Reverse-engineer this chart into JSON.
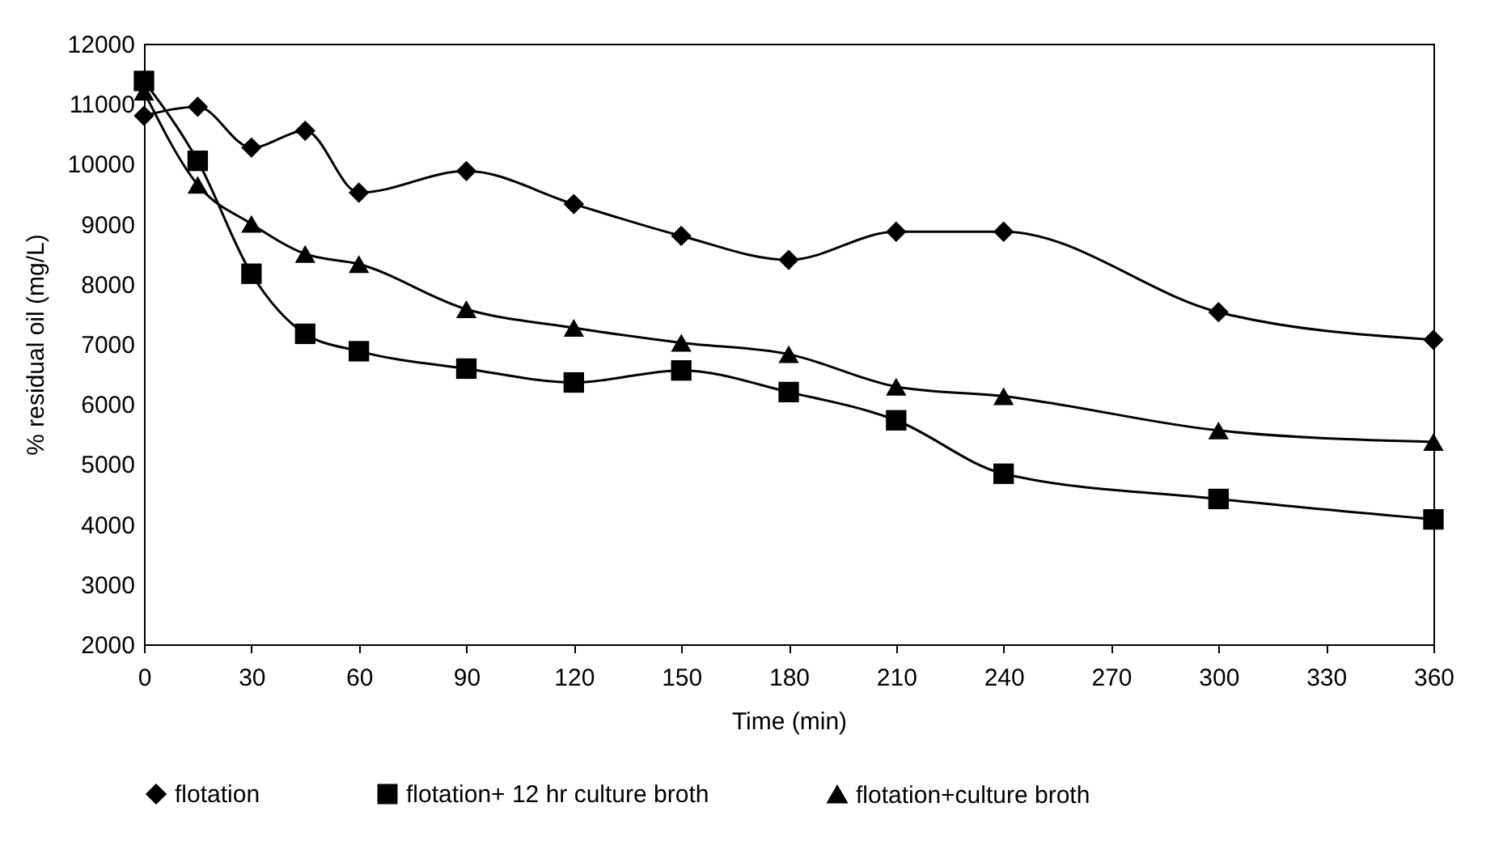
{
  "chart_data": {
    "type": "line",
    "xlabel": "Time (min)",
    "ylabel": "% residual oil (mg/L)",
    "x": [
      0,
      15,
      30,
      45,
      60,
      90,
      120,
      150,
      180,
      210,
      240,
      300,
      360
    ],
    "xlim": [
      0,
      360
    ],
    "xticks": [
      0,
      30,
      60,
      90,
      120,
      150,
      180,
      210,
      240,
      270,
      300,
      330,
      360
    ],
    "ylim": [
      2000,
      12000
    ],
    "yticks": [
      2000,
      3000,
      4000,
      5000,
      6000,
      7000,
      8000,
      9000,
      10000,
      11000,
      12000
    ],
    "grid": false,
    "legend": "bottom",
    "line_style": "solid",
    "series": [
      {
        "name": "flotation",
        "color": "#000000",
        "marker": "diamond",
        "values": [
          10800,
          10950,
          10270,
          10550,
          9520,
          9880,
          9330,
          8800,
          8400,
          8870,
          8870,
          7530,
          7070
        ]
      },
      {
        "name": "flotation+ 12 hr culture broth",
        "color": "#000000",
        "marker": "square",
        "values": [
          11380,
          10050,
          8170,
          7170,
          6880,
          6590,
          6360,
          6560,
          6200,
          5730,
          4840,
          4420,
          4080
        ]
      },
      {
        "name": "flotation+culture broth",
        "color": "#000000",
        "marker": "triangle",
        "values": [
          11200,
          9650,
          9000,
          8500,
          8330,
          7580,
          7270,
          7020,
          6830,
          6290,
          6130,
          5560,
          5370
        ]
      }
    ]
  }
}
